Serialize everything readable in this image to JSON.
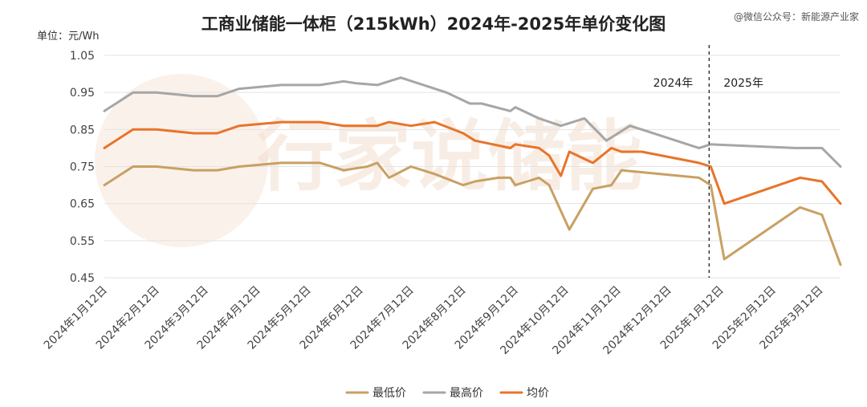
{
  "chart_data": {
    "type": "line",
    "title": "工商业储能一体柜（215kWh）2024年-2025年单价变化图",
    "unit_label": "单位：元/Wh",
    "watermark": "@微信公众号：新能源产业家",
    "background_logo": "行家说储能",
    "ylim": [
      0.45,
      1.05
    ],
    "yticks": [
      0.45,
      0.55,
      0.65,
      0.75,
      0.85,
      0.95,
      1.05
    ],
    "ytick_labels": [
      "0.45",
      "0.55",
      "0.65",
      "0.75",
      "0.85",
      "0.95",
      "1.05"
    ],
    "xlim": [
      "2024-01-12",
      "2025-03-24"
    ],
    "xticks": [
      "2024-01-12",
      "2024-02-12",
      "2024-03-12",
      "2024-04-12",
      "2024-05-12",
      "2024-06-12",
      "2024-07-12",
      "2024-08-12",
      "2024-09-12",
      "2024-10-12",
      "2024-11-12",
      "2024-12-12",
      "2025-01-12",
      "2025-02-12",
      "2025-03-12"
    ],
    "xtick_labels": [
      "2024年1月12日",
      "2024年2月12日",
      "2024年3月12日",
      "2024年4月12日",
      "2024年5月12日",
      "2024年6月12日",
      "2024年7月12日",
      "2024年8月12日",
      "2024年9月12日",
      "2024年10月12日",
      "2024年11月12日",
      "2024年12月12日",
      "2025年1月12日",
      "2025年2月12日",
      "2025年3月12日"
    ],
    "divider": {
      "x": "2025-01-05",
      "left_label": "2024年",
      "right_label": "2025年"
    },
    "grid": true,
    "legend_position": "bottom",
    "series": [
      {
        "name": "最低价",
        "color": "#C9A063",
        "x": [
          "2024-01-12",
          "2024-01-29",
          "2024-02-12",
          "2024-03-05",
          "2024-03-19",
          "2024-04-01",
          "2024-04-26",
          "2024-05-12",
          "2024-05-19",
          "2024-06-02",
          "2024-06-09",
          "2024-06-16",
          "2024-06-22",
          "2024-06-29",
          "2024-07-12",
          "2024-07-26",
          "2024-08-12",
          "2024-08-19",
          "2024-09-02",
          "2024-09-09",
          "2024-09-12",
          "2024-09-19",
          "2024-09-26",
          "2024-10-02",
          "2024-10-14",
          "2024-10-28",
          "2024-11-08",
          "2024-11-14",
          "2024-12-30",
          "2025-01-06",
          "2025-01-14",
          "2025-02-28",
          "2025-03-13",
          "2025-03-24"
        ],
        "values": [
          0.7,
          0.75,
          0.75,
          0.74,
          0.74,
          0.75,
          0.76,
          0.76,
          0.76,
          0.74,
          0.745,
          0.75,
          0.76,
          0.72,
          0.75,
          0.73,
          0.7,
          0.71,
          0.72,
          0.72,
          0.7,
          0.71,
          0.72,
          0.7,
          0.58,
          0.69,
          0.7,
          0.74,
          0.72,
          0.7,
          0.5,
          0.64,
          0.62,
          0.485
        ]
      },
      {
        "name": "最高价",
        "color": "#A6A6A6",
        "x": [
          "2024-01-12",
          "2024-01-29",
          "2024-02-12",
          "2024-03-05",
          "2024-03-19",
          "2024-04-01",
          "2024-04-26",
          "2024-05-12",
          "2024-05-19",
          "2024-06-02",
          "2024-06-09",
          "2024-06-22",
          "2024-07-06",
          "2024-08-02",
          "2024-08-16",
          "2024-08-23",
          "2024-09-09",
          "2024-09-12",
          "2024-09-26",
          "2024-10-09",
          "2024-10-23",
          "2024-11-05",
          "2024-11-19",
          "2024-11-26",
          "2024-12-30",
          "2025-01-06",
          "2025-02-25",
          "2025-03-13",
          "2025-03-24"
        ],
        "values": [
          0.9,
          0.95,
          0.95,
          0.94,
          0.94,
          0.96,
          0.97,
          0.97,
          0.97,
          0.98,
          0.975,
          0.97,
          0.99,
          0.95,
          0.92,
          0.92,
          0.9,
          0.91,
          0.88,
          0.86,
          0.88,
          0.82,
          0.86,
          0.85,
          0.8,
          0.81,
          0.8,
          0.8,
          0.75
        ]
      },
      {
        "name": "均价",
        "color": "#E8742A",
        "x": [
          "2024-01-12",
          "2024-01-29",
          "2024-02-12",
          "2024-03-05",
          "2024-03-19",
          "2024-04-01",
          "2024-04-26",
          "2024-05-12",
          "2024-05-19",
          "2024-06-02",
          "2024-06-09",
          "2024-06-16",
          "2024-06-22",
          "2024-06-29",
          "2024-07-12",
          "2024-07-26",
          "2024-08-12",
          "2024-08-19",
          "2024-09-09",
          "2024-09-12",
          "2024-09-26",
          "2024-10-02",
          "2024-10-09",
          "2024-10-14",
          "2024-10-28",
          "2024-11-08",
          "2024-11-14",
          "2024-11-26",
          "2024-12-30",
          "2025-01-06",
          "2025-01-14",
          "2025-02-28",
          "2025-03-13",
          "2025-03-24"
        ],
        "values": [
          0.8,
          0.85,
          0.85,
          0.84,
          0.84,
          0.86,
          0.87,
          0.87,
          0.87,
          0.86,
          0.86,
          0.86,
          0.86,
          0.87,
          0.86,
          0.87,
          0.84,
          0.82,
          0.8,
          0.81,
          0.8,
          0.78,
          0.725,
          0.79,
          0.76,
          0.8,
          0.79,
          0.79,
          0.76,
          0.75,
          0.65,
          0.72,
          0.71,
          0.65
        ]
      }
    ]
  }
}
